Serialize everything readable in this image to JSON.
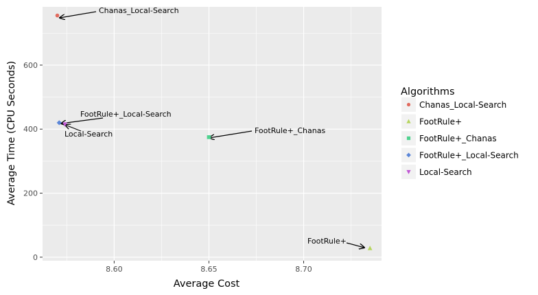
{
  "chart_data": {
    "type": "scatter",
    "xlabel": "Average Cost",
    "ylabel": "Average Time (CPU Seconds)",
    "xlim": [
      8.5622,
      8.7411
    ],
    "ylim": [
      -11,
      782
    ],
    "x_ticks": [
      8.6,
      8.65,
      8.7
    ],
    "x_tick_labels": [
      "8.60",
      "8.65",
      "8.70"
    ],
    "y_ticks": [
      0,
      200,
      400,
      600
    ],
    "y_tick_labels": [
      "0",
      "200",
      "400",
      "600"
    ],
    "grid": true,
    "legend": {
      "title": "Algorithms",
      "position": "right"
    },
    "series": [
      {
        "name": "Chanas_Local-Search",
        "color": "#E16A5E",
        "marker": "circle",
        "x": 8.57,
        "y": 755
      },
      {
        "name": "FootRule+",
        "color": "#B5D55C",
        "marker": "triangle-up",
        "x": 8.735,
        "y": 28
      },
      {
        "name": "FootRule+_Chanas",
        "color": "#4FD28F",
        "marker": "square",
        "x": 8.65,
        "y": 375
      },
      {
        "name": "FootRule+_Local-Search",
        "color": "#5B86D8",
        "marker": "diamond",
        "x": 8.571,
        "y": 420
      },
      {
        "name": "Local-Search",
        "color": "#C057D4",
        "marker": "triangle-down",
        "x": 8.574,
        "y": 415
      }
    ],
    "annotations": [
      {
        "text": "Chanas_Local-Search",
        "series": 0
      },
      {
        "text": "FootRule+",
        "series": 1
      },
      {
        "text": "FootRule+_Chanas",
        "series": 2
      },
      {
        "text": "FootRule+_Local-Search",
        "series": 3
      },
      {
        "text": "Local-Search",
        "series": 4
      }
    ]
  }
}
